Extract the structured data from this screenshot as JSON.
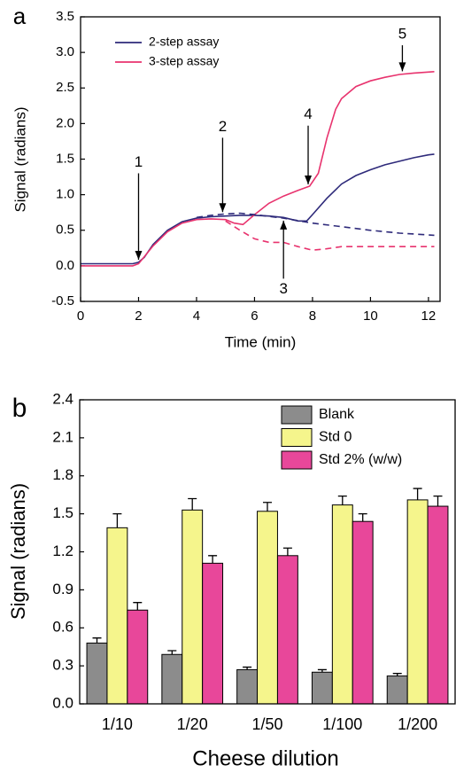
{
  "chart_data": [
    {
      "type": "line",
      "panel_label": "a",
      "xlabel": "Time (min)",
      "ylabel": "Signal (radians)",
      "xlim": [
        0,
        12.4
      ],
      "xticks": [
        0,
        2,
        4,
        6,
        8,
        10,
        12
      ],
      "ylim": [
        -0.5,
        3.5
      ],
      "yticks": [
        -0.5,
        {
          "value": 0,
          "label": "0.0"
        },
        0.5,
        {
          "value": 1,
          "label": "1.0"
        },
        1.5,
        {
          "value": 2,
          "label": "2.0"
        },
        2.5,
        {
          "value": 3,
          "label": "3.0"
        },
        3.5
      ],
      "legend": "upper left",
      "series": [
        {
          "name": "2-step assay",
          "color": "#2e2a7a",
          "x": [
            0,
            1.8,
            2,
            2.2,
            2.5,
            3,
            3.5,
            4,
            4.5,
            5,
            5.5,
            6,
            6.5,
            7,
            7.5,
            7.8,
            8,
            8.5,
            9,
            9.5,
            10,
            10.5,
            11,
            11.5,
            12,
            12.2
          ],
          "values": [
            0.03,
            0.03,
            0.05,
            0.12,
            0.3,
            0.5,
            0.62,
            0.67,
            0.69,
            0.7,
            0.71,
            0.71,
            0.7,
            0.68,
            0.63,
            0.63,
            0.72,
            0.95,
            1.15,
            1.27,
            1.35,
            1.42,
            1.47,
            1.52,
            1.56,
            1.57
          ]
        },
        {
          "name": "3-step assay",
          "color": "#e8336e",
          "x": [
            0,
            1.8,
            2,
            2.5,
            3,
            3.5,
            4,
            4.5,
            5,
            5.3,
            5.6,
            6,
            6.5,
            7,
            7.5,
            7.9,
            8.2,
            8.5,
            8.8,
            9,
            9.5,
            10,
            10.5,
            11,
            11.5,
            12.2
          ],
          "values": [
            0,
            0,
            0.03,
            0.28,
            0.48,
            0.6,
            0.65,
            0.66,
            0.65,
            0.6,
            0.58,
            0.72,
            0.88,
            0.98,
            1.06,
            1.12,
            1.3,
            1.8,
            2.2,
            2.35,
            2.52,
            2.6,
            2.65,
            2.69,
            2.71,
            2.73
          ]
        },
        {
          "color": "#2e2a7a",
          "dashed": true,
          "x": [
            4,
            4.5,
            5,
            5.5,
            6,
            7,
            8,
            9,
            10,
            11,
            12.2
          ],
          "values": [
            0.68,
            0.71,
            0.73,
            0.74,
            0.72,
            0.67,
            0.6,
            0.55,
            0.5,
            0.46,
            0.43
          ]
        },
        {
          "color": "#e8336e",
          "dashed": true,
          "x": [
            5,
            5.5,
            6,
            6.5,
            7,
            7.5,
            8,
            8.5,
            9,
            10,
            12.2
          ],
          "values": [
            0.63,
            0.5,
            0.38,
            0.33,
            0.33,
            0.27,
            0.22,
            0.24,
            0.27,
            0.27,
            0.27
          ]
        }
      ],
      "annotations": [
        {
          "text": "1",
          "x": 2,
          "y": 0.06,
          "label_y": 1.45
        },
        {
          "text": "2",
          "x": 4.9,
          "y": 0.73,
          "label_y": 1.95
        },
        {
          "text": "3",
          "x": 7,
          "y": 0.66,
          "label_y": -0.33
        },
        {
          "text": "4",
          "x": 7.85,
          "y": 1.12,
          "label_y": 2.12
        },
        {
          "text": "5",
          "x": 11.1,
          "y": 2.71,
          "label_y": 3.25
        }
      ]
    },
    {
      "type": "bar",
      "panel_label": "b",
      "xlabel": "Cheese dilution",
      "ylabel": "Signal (radians)",
      "categories": [
        "1/10",
        "1/20",
        "1/50",
        "1/100",
        "1/200"
      ],
      "ylim": [
        0,
        2.4
      ],
      "yticks": [
        {
          "value": 0,
          "label": "0.0"
        },
        0.3,
        0.6,
        0.9,
        1.2,
        1.5,
        1.8,
        2.1,
        2.4
      ],
      "legend": "upper right",
      "series": [
        {
          "name": "Blank",
          "color": "#8c8c8c",
          "values": [
            0.48,
            0.39,
            0.27,
            0.25,
            0.22
          ],
          "errors": [
            0.04,
            0.03,
            0.02,
            0.02,
            0.02
          ]
        },
        {
          "name": "Std 0",
          "color": "#f5f58c",
          "values": [
            1.39,
            1.53,
            1.52,
            1.57,
            1.61
          ],
          "errors": [
            0.11,
            0.09,
            0.07,
            0.07,
            0.09
          ]
        },
        {
          "name": "Std 2% (w/w)",
          "color": "#e8479a",
          "values": [
            0.74,
            1.11,
            1.17,
            1.44,
            1.56
          ],
          "errors": [
            0.06,
            0.06,
            0.06,
            0.06,
            0.08
          ]
        }
      ]
    }
  ]
}
